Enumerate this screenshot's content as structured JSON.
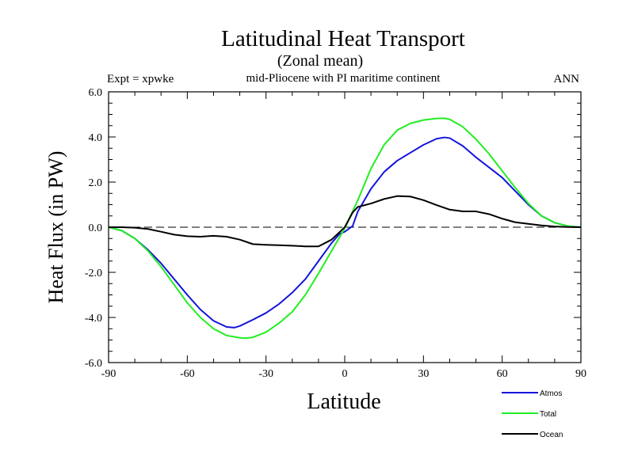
{
  "chart_data": {
    "type": "line",
    "title": "Latitudinal Heat Transport",
    "subtitle": "(Zonal mean)",
    "left_label": "Expt = xpwke",
    "center_label": "mid-Pliocene with PI maritime continent",
    "right_label": "ANN",
    "xlabel": "Latitude",
    "ylabel": "Heat Flux (in PW)",
    "xlim": [
      -90,
      90
    ],
    "ylim": [
      -6,
      6
    ],
    "xticks": [
      -90,
      -60,
      -30,
      0,
      30,
      60,
      90
    ],
    "xtick_labels": [
      "-90",
      "-60",
      "-30",
      "0",
      "30",
      "60",
      "90"
    ],
    "yticks": [
      -6,
      -4,
      -2,
      0,
      2,
      4,
      6
    ],
    "ytick_labels": [
      "-6.0",
      "-4.0",
      "-2.0",
      "0.0",
      "2.0",
      "4.0",
      "6.0"
    ],
    "reference_line": 0,
    "series": [
      {
        "name": "Atmos",
        "color": "#1414dc",
        "x": [
          -90,
          -85,
          -80,
          -75,
          -70,
          -65,
          -60,
          -55,
          -50,
          -45,
          -42,
          -40,
          -35,
          -30,
          -25,
          -20,
          -15,
          -10,
          -5,
          -2,
          0,
          3,
          5,
          10,
          15,
          20,
          25,
          30,
          35,
          38,
          40,
          45,
          50,
          55,
          60,
          65,
          70,
          75,
          80,
          85,
          90
        ],
        "y": [
          0,
          -0.15,
          -0.5,
          -1.0,
          -1.6,
          -2.3,
          -3.0,
          -3.65,
          -4.15,
          -4.42,
          -4.45,
          -4.38,
          -4.1,
          -3.8,
          -3.4,
          -2.9,
          -2.3,
          -1.5,
          -0.7,
          -0.3,
          -0.2,
          0.05,
          0.7,
          1.7,
          2.45,
          2.95,
          3.3,
          3.65,
          3.92,
          3.98,
          3.95,
          3.6,
          3.1,
          2.65,
          2.2,
          1.6,
          1.0,
          0.5,
          0.2,
          0.05,
          0
        ]
      },
      {
        "name": "Total",
        "color": "#22ee22",
        "x": [
          -90,
          -85,
          -80,
          -75,
          -70,
          -65,
          -60,
          -55,
          -50,
          -45,
          -40,
          -38,
          -35,
          -30,
          -25,
          -20,
          -15,
          -10,
          -5,
          0,
          5,
          10,
          15,
          20,
          25,
          30,
          35,
          38,
          40,
          45,
          50,
          55,
          60,
          65,
          70,
          75,
          80,
          85,
          90
        ],
        "y": [
          0,
          -0.15,
          -0.5,
          -1.05,
          -1.75,
          -2.55,
          -3.35,
          -4.0,
          -4.5,
          -4.8,
          -4.9,
          -4.92,
          -4.88,
          -4.65,
          -4.25,
          -3.75,
          -3.0,
          -2.05,
          -1.05,
          -0.05,
          1.2,
          2.6,
          3.65,
          4.3,
          4.6,
          4.75,
          4.82,
          4.83,
          4.78,
          4.45,
          3.9,
          3.25,
          2.5,
          1.75,
          1.05,
          0.5,
          0.2,
          0.05,
          0
        ]
      },
      {
        "name": "Ocean",
        "color": "#000000",
        "x": [
          -90,
          -85,
          -80,
          -75,
          -70,
          -65,
          -60,
          -55,
          -50,
          -45,
          -40,
          -35,
          -30,
          -25,
          -20,
          -15,
          -10,
          -5,
          0,
          3,
          5,
          10,
          15,
          20,
          25,
          30,
          35,
          40,
          45,
          50,
          55,
          60,
          65,
          70,
          75,
          80,
          85,
          90
        ],
        "y": [
          0,
          0,
          -0.02,
          -0.08,
          -0.2,
          -0.33,
          -0.4,
          -0.42,
          -0.38,
          -0.42,
          -0.55,
          -0.75,
          -0.78,
          -0.8,
          -0.82,
          -0.85,
          -0.85,
          -0.55,
          0,
          0.65,
          0.9,
          1.05,
          1.25,
          1.38,
          1.36,
          1.2,
          0.98,
          0.78,
          0.7,
          0.7,
          0.58,
          0.38,
          0.22,
          0.15,
          0.08,
          0.03,
          0.01,
          0
        ]
      }
    ],
    "legend_position": "bottom-right"
  }
}
